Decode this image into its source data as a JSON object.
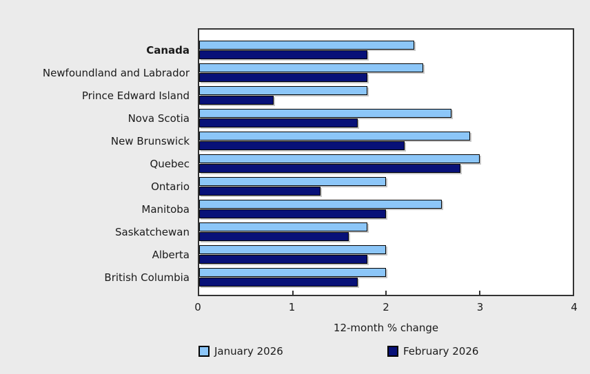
{
  "chart_data": {
    "type": "bar",
    "orientation": "horizontal",
    "title": "",
    "xlabel": "12-month % change",
    "xlim": [
      0,
      4
    ],
    "xticks": [
      0,
      1,
      2,
      3,
      4
    ],
    "grid": false,
    "legend_position": "bottom",
    "plot_background": "#ffffff",
    "page_background": "#EBEBEB",
    "categories": [
      "Canada",
      "Newfoundland and Labrador",
      "Prince Edward Island",
      "Nova Scotia",
      "New Brunswick",
      "Quebec",
      "Ontario",
      "Manitoba",
      "Saskatchewan",
      "Alberta",
      "British Columbia"
    ],
    "bold_category": "Canada",
    "series": [
      {
        "name": "January 2026",
        "color": "#8CC6F8",
        "values": [
          2.3,
          2.4,
          1.8,
          2.7,
          2.9,
          3.0,
          2.0,
          2.6,
          1.8,
          2.0,
          2.0
        ]
      },
      {
        "name": "February 2026",
        "color": "#081178",
        "values": [
          1.8,
          1.8,
          0.8,
          1.7,
          2.2,
          2.8,
          1.3,
          2.0,
          1.6,
          1.8,
          1.7
        ]
      }
    ]
  }
}
